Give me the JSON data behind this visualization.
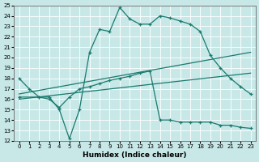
{
  "xlabel": "Humidex (Indice chaleur)",
  "bg_color": "#c8e8e8",
  "grid_color": "#ffffff",
  "line_color": "#1a7a6e",
  "xlim": [
    -0.5,
    23.5
  ],
  "ylim": [
    12,
    25
  ],
  "xticks": [
    0,
    1,
    2,
    3,
    4,
    5,
    6,
    7,
    8,
    9,
    10,
    11,
    12,
    13,
    14,
    15,
    16,
    17,
    18,
    19,
    20,
    21,
    22,
    23
  ],
  "yticks": [
    12,
    13,
    14,
    15,
    16,
    17,
    18,
    19,
    20,
    21,
    22,
    23,
    24,
    25
  ],
  "line1_x": [
    0,
    1,
    2,
    3,
    4,
    5,
    6,
    7,
    8,
    9,
    10,
    11,
    12,
    13,
    14,
    15,
    16,
    17,
    18,
    19,
    20,
    21,
    22,
    23
  ],
  "line1_y": [
    18.0,
    17.0,
    16.2,
    16.2,
    15.0,
    12.2,
    15.0,
    20.5,
    22.7,
    22.5,
    24.8,
    23.7,
    23.2,
    23.2,
    24.0,
    23.8,
    23.5,
    23.2,
    22.5,
    20.2,
    19.0,
    18.0,
    17.2,
    16.5
  ],
  "line2_x": [
    0,
    2,
    3,
    4,
    5,
    6,
    7,
    8,
    9,
    10,
    11,
    12,
    13,
    14,
    15,
    16,
    17,
    18,
    19,
    20,
    21,
    22,
    23
  ],
  "line2_y": [
    16.2,
    16.2,
    16.0,
    15.2,
    16.2,
    17.0,
    17.2,
    17.5,
    17.8,
    18.0,
    18.2,
    18.5,
    18.7,
    14.0,
    14.0,
    13.8,
    13.8,
    13.8,
    13.8,
    13.5,
    13.5,
    13.3,
    13.2
  ],
  "line3_x": [
    0,
    23
  ],
  "line3_y": [
    16.5,
    20.5
  ],
  "line4_x": [
    0,
    23
  ],
  "line4_y": [
    16.0,
    18.5
  ]
}
